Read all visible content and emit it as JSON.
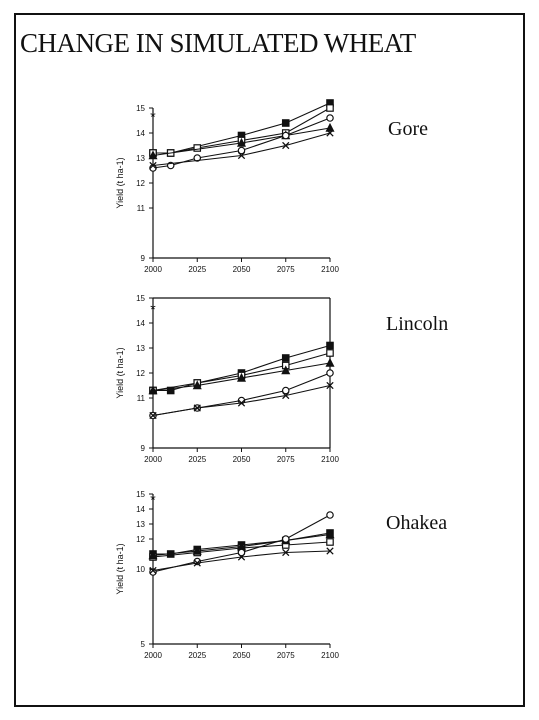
{
  "title": "CHANGE IN SIMULATED WHEAT",
  "colors": {
    "ink": "#111111",
    "open_marker": "#ffffff"
  },
  "chart_data": [
    {
      "type": "line",
      "site": "Gore",
      "ylabel": "Yield (t ha-1)",
      "ylim": [
        9,
        15
      ],
      "yticks": [
        9,
        11,
        12,
        13,
        14,
        15
      ],
      "xlim": [
        2000,
        2100
      ],
      "xticks": [
        2000,
        2025,
        2050,
        2075,
        2100
      ],
      "series": [
        {
          "marker": "filled-square",
          "x": [
            2000,
            2010,
            2050,
            2075,
            2100
          ],
          "values": [
            13.2,
            13.2,
            13.9,
            14.4,
            15.2
          ]
        },
        {
          "marker": "open-square",
          "x": [
            2000,
            2010,
            2025,
            2050,
            2075,
            2100
          ],
          "values": [
            13.2,
            13.2,
            13.4,
            13.7,
            14.0,
            15.0
          ]
        },
        {
          "marker": "filled-triangle",
          "x": [
            2000,
            2050,
            2075,
            2100
          ],
          "values": [
            13.1,
            13.6,
            13.9,
            14.2
          ]
        },
        {
          "marker": "open-circle",
          "x": [
            2000,
            2010,
            2025,
            2050,
            2075,
            2100
          ],
          "values": [
            12.6,
            12.7,
            13.0,
            13.3,
            13.9,
            14.6
          ]
        },
        {
          "marker": "cross",
          "x": [
            2000,
            2050,
            2075,
            2100
          ],
          "values": [
            12.7,
            13.1,
            13.5,
            14.0
          ]
        }
      ],
      "annotations": [
        {
          "text": "*",
          "x": 2000,
          "y": 14.7
        }
      ]
    },
    {
      "type": "line",
      "site": "Lincoln",
      "ylabel": "Yield (t ha-1)",
      "ylim": [
        9,
        15
      ],
      "yticks": [
        9,
        11,
        12,
        13,
        14,
        15
      ],
      "xlim": [
        2000,
        2100
      ],
      "xticks": [
        2000,
        2025,
        2050,
        2075,
        2100
      ],
      "xticklabels": [
        "2000",
        "2025",
        "2050",
        "2075",
        "2100"
      ],
      "series": [
        {
          "marker": "filled-square",
          "x": [
            2000,
            2010,
            2025,
            2050,
            2075,
            2100
          ],
          "values": [
            11.3,
            11.3,
            11.6,
            12.0,
            12.6,
            13.1
          ]
        },
        {
          "marker": "open-square",
          "x": [
            2000,
            2025,
            2050,
            2075,
            2100
          ],
          "values": [
            11.3,
            11.6,
            11.9,
            12.3,
            12.8
          ]
        },
        {
          "marker": "filled-triangle",
          "x": [
            2000,
            2025,
            2050,
            2075,
            2100
          ],
          "values": [
            11.3,
            11.5,
            11.8,
            12.1,
            12.4
          ]
        },
        {
          "marker": "open-circle",
          "x": [
            2000,
            2025,
            2050,
            2075,
            2100
          ],
          "values": [
            10.3,
            10.6,
            10.9,
            11.3,
            12.0
          ]
        },
        {
          "marker": "cross",
          "x": [
            2000,
            2025,
            2050,
            2075,
            2100
          ],
          "values": [
            10.3,
            10.6,
            10.8,
            11.1,
            11.5
          ]
        }
      ],
      "annotations": [
        {
          "text": "*",
          "x": 2000,
          "y": 14.6
        }
      ]
    },
    {
      "type": "line",
      "site": "Ohakea",
      "ylabel": "Yield (t ha-1)",
      "ylim": [
        5,
        15
      ],
      "yticks": [
        5,
        10,
        12,
        13,
        14,
        15
      ],
      "xlim": [
        2000,
        2100
      ],
      "xticks": [
        2000,
        2025,
        2050,
        2075,
        2100
      ],
      "series": [
        {
          "marker": "filled-square",
          "x": [
            2000,
            2010,
            2025,
            2050,
            2075,
            2100
          ],
          "values": [
            11.0,
            11.0,
            11.3,
            11.6,
            11.9,
            12.4
          ]
        },
        {
          "marker": "open-square",
          "x": [
            2000,
            2025,
            2050,
            2075,
            2100
          ],
          "values": [
            10.8,
            11.1,
            11.4,
            11.6,
            11.8
          ]
        },
        {
          "marker": "filled-triangle",
          "x": [
            2000,
            2025,
            2050,
            2075,
            2100
          ],
          "values": [
            10.9,
            11.2,
            11.5,
            11.9,
            12.3
          ]
        },
        {
          "marker": "open-circle",
          "x": [
            2000,
            2025,
            2050,
            2075,
            2100
          ],
          "values": [
            9.8,
            10.5,
            11.1,
            12.0,
            13.6
          ]
        },
        {
          "marker": "cross",
          "x": [
            2000,
            2025,
            2050,
            2075,
            2100
          ],
          "values": [
            9.9,
            10.4,
            10.8,
            11.1,
            11.2
          ]
        }
      ],
      "annotations": [
        {
          "text": "*",
          "x": 2000,
          "y": 14.7
        }
      ]
    }
  ]
}
